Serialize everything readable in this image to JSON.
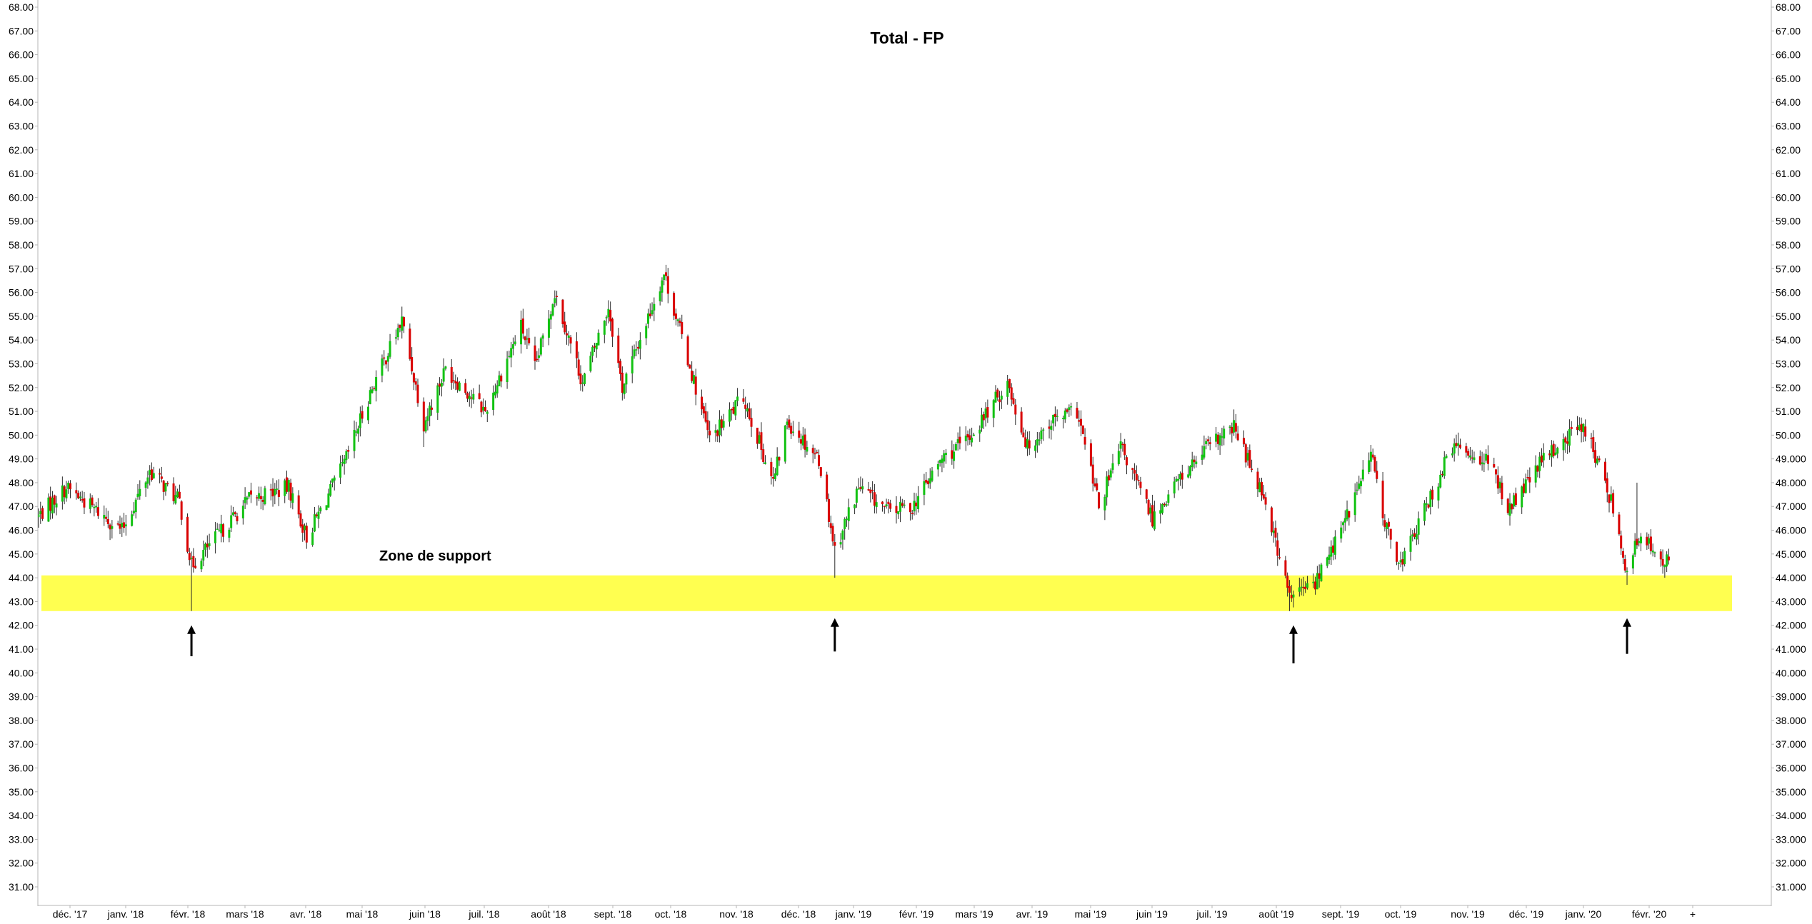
{
  "chart_data": {
    "type": "ohlc",
    "title": "Total - FP",
    "xlabel": "",
    "ylabel": "",
    "grid": false,
    "legend": "none",
    "ylim": [
      30.3,
      68.2
    ],
    "y_ticks_left": [
      "68.00",
      "67.00",
      "66.00",
      "65.00",
      "64.00",
      "63.00",
      "62.00",
      "61.00",
      "60.00",
      "59.00",
      "58.00",
      "57.00",
      "56.00",
      "55.00",
      "54.00",
      "53.00",
      "52.00",
      "51.00",
      "50.00",
      "49.00",
      "48.00",
      "47.00",
      "46.00",
      "45.00",
      "44.00",
      "43.00",
      "42.00",
      "41.00",
      "40.00",
      "39.00",
      "38.00",
      "37.00",
      "36.00",
      "35.00",
      "34.00",
      "33.00",
      "32.00",
      "31.00"
    ],
    "y_ticks_right": [
      "68.00",
      "67.00",
      "66.00",
      "65.00",
      "64.00",
      "63.00",
      "62.00",
      "61.00",
      "60.00",
      "59.00",
      "58.00",
      "57.00",
      "56.00",
      "55.00",
      "54.00",
      "53.00",
      "52.00",
      "51.00",
      "50.00",
      "49.000",
      "48.000",
      "47.000",
      "46.000",
      "45.000",
      "44.000",
      "43.000",
      "42.000",
      "41.000",
      "40.000",
      "39.000",
      "38.000",
      "37.000",
      "36.000",
      "35.000",
      "34.000",
      "33.000",
      "32.000",
      "31.000"
    ],
    "x_ticks": [
      "déc. '17",
      "janv. '18",
      "févr. '18",
      "mars '18",
      "avr. '18",
      "mai '18",
      "juin '18",
      "juil. '18",
      "août '18",
      "sept. '18",
      "oct. '18",
      "nov. '18",
      "déc. '18",
      "janv. '19",
      "févr. '19",
      "mars '19",
      "avr. '19",
      "mai '19",
      "juin '19",
      "juil. '19",
      "août '19",
      "sept. '19",
      "oct. '19",
      "nov. '19",
      "déc. '19",
      "janv. '20",
      "févr. '20",
      "+"
    ],
    "x_range": [
      "2017-11-22",
      "2020-03-03"
    ],
    "key_prices": [
      {
        "date": "2017-11-22",
        "close": 46.6
      },
      {
        "date": "2017-12-06",
        "close": 47.8
      },
      {
        "date": "2018-01-03",
        "close": 46.0
      },
      {
        "date": "2018-01-17",
        "close": 48.5
      },
      {
        "date": "2018-02-01",
        "close": 47.2
      },
      {
        "date": "2018-02-07",
        "close": 44.5,
        "low": 42.6
      },
      {
        "date": "2018-03-08",
        "close": 47.3
      },
      {
        "date": "2018-03-28",
        "close": 47.8
      },
      {
        "date": "2018-04-06",
        "close": 45.7
      },
      {
        "date": "2018-04-25",
        "close": 48.8
      },
      {
        "date": "2018-05-09",
        "close": 52.0
      },
      {
        "date": "2018-05-24",
        "close": 54.8
      },
      {
        "date": "2018-06-04",
        "close": 50.5,
        "low": 49.5
      },
      {
        "date": "2018-06-15",
        "close": 52.8
      },
      {
        "date": "2018-07-05",
        "close": 51.0
      },
      {
        "date": "2018-07-23",
        "close": 54.6
      },
      {
        "date": "2018-07-30",
        "close": 52.8
      },
      {
        "date": "2018-08-09",
        "close": 56.0
      },
      {
        "date": "2018-08-23",
        "close": 52.2
      },
      {
        "date": "2018-09-05",
        "close": 55.4
      },
      {
        "date": "2018-09-12",
        "close": 52.0
      },
      {
        "date": "2018-10-03",
        "close": 56.8
      },
      {
        "date": "2018-10-15",
        "close": 53.2
      },
      {
        "date": "2018-10-26",
        "close": 49.8
      },
      {
        "date": "2018-11-12",
        "close": 51.6
      },
      {
        "date": "2018-11-27",
        "close": 48.0
      },
      {
        "date": "2018-12-04",
        "close": 50.6
      },
      {
        "date": "2018-12-20",
        "close": 49.0
      },
      {
        "date": "2018-12-28",
        "close": 45.2,
        "low": 44.0
      },
      {
        "date": "2019-01-09",
        "close": 47.8
      },
      {
        "date": "2019-01-24",
        "close": 46.8
      },
      {
        "date": "2019-02-05",
        "close": 47.0
      },
      {
        "date": "2019-02-20",
        "close": 49.0
      },
      {
        "date": "2019-03-05",
        "close": 49.8
      },
      {
        "date": "2019-03-25",
        "close": 52.2
      },
      {
        "date": "2019-04-04",
        "close": 49.5
      },
      {
        "date": "2019-04-16",
        "close": 50.6
      },
      {
        "date": "2019-04-29",
        "close": 51.0
      },
      {
        "date": "2019-05-10",
        "close": 47.0
      },
      {
        "date": "2019-05-21",
        "close": 49.5
      },
      {
        "date": "2019-06-06",
        "close": 46.5
      },
      {
        "date": "2019-06-18",
        "close": 48.0
      },
      {
        "date": "2019-07-04",
        "close": 49.5
      },
      {
        "date": "2019-07-17",
        "close": 50.3
      },
      {
        "date": "2019-08-01",
        "close": 47.5
      },
      {
        "date": "2019-08-14",
        "close": 43.2,
        "low": 42.6
      },
      {
        "date": "2019-08-27",
        "close": 43.8
      },
      {
        "date": "2019-09-10",
        "close": 46.2
      },
      {
        "date": "2019-09-24",
        "close": 49.2
      },
      {
        "date": "2019-10-02",
        "close": 46.0
      },
      {
        "date": "2019-10-09",
        "close": 44.6
      },
      {
        "date": "2019-10-21",
        "close": 46.8
      },
      {
        "date": "2019-11-04",
        "close": 49.5
      },
      {
        "date": "2019-11-21",
        "close": 49.0
      },
      {
        "date": "2019-12-03",
        "close": 46.9
      },
      {
        "date": "2019-12-20",
        "close": 49.0
      },
      {
        "date": "2020-01-09",
        "close": 50.5
      },
      {
        "date": "2020-01-24",
        "close": 47.0
      },
      {
        "date": "2020-01-31",
        "close": 44.2,
        "low": 43.7
      },
      {
        "date": "2020-02-05",
        "close": 45.5,
        "high": 48.0
      },
      {
        "date": "2020-02-14",
        "close": 45.3
      },
      {
        "date": "2020-02-24",
        "close": 44.2
      }
    ],
    "colors": {
      "up": "#12c212",
      "down": "#d90000",
      "zone": "#ffff50",
      "axis": "#b4b4b4",
      "text": "#000000"
    },
    "support_zone": {
      "low": 42.6,
      "high": 44.1,
      "label": "Zone de support"
    },
    "arrows": [
      {
        "date": "2018-02-07",
        "tip": 42.0,
        "tail": 40.7
      },
      {
        "date": "2018-12-28",
        "tip": 42.3,
        "tail": 40.9
      },
      {
        "date": "2019-08-16",
        "tip": 42.0,
        "tail": 40.4
      },
      {
        "date": "2020-01-31",
        "tip": 42.3,
        "tail": 40.8
      }
    ]
  }
}
